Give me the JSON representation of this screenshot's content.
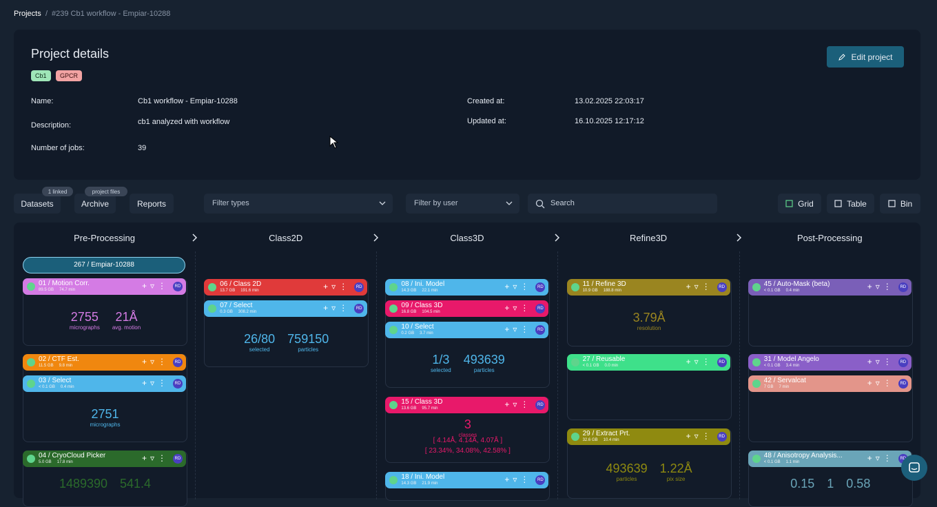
{
  "breadcrumb": [
    "Projects",
    "#239 Cb1 workflow - Empiar-10288"
  ],
  "details": {
    "title": "Project details",
    "edit_button": "Edit project",
    "tags": [
      "Cb1",
      "GPCR"
    ],
    "fields": [
      {
        "label": "Name:",
        "value": "Cb1 workflow - Empiar-10288"
      },
      {
        "label": "Description:",
        "value": "cb1 analyzed with workflow"
      },
      {
        "label": "Number of jobs:",
        "value": 39
      },
      {
        "label": "Created at:",
        "value": "13.02.2025 22:03:17"
      },
      {
        "label": "Updated at:",
        "value": "16.10.2025 12:17:12"
      }
    ]
  },
  "toolbar": {
    "badges": [
      "1 linked",
      "project files"
    ],
    "tabs": [
      "Datasets",
      "Archive",
      "Reports"
    ],
    "filters": [
      "Filter types",
      "Filter by user"
    ],
    "search": "Search",
    "views": [
      "Grid",
      "Table",
      "Bin"
    ]
  },
  "workflow": {
    "dataset": "267 / Empiar-10288",
    "columns": [
      {
        "title": "Pre-Processing",
        "groups": [
          {
            "jobs": [
              {
                "title": "01 / Motion Corr.",
                "size": "89.5 GB",
                "time": "74.7 min",
                "user": "RD",
                "color": "#d47be4"
              }
            ],
            "stats": [
              {
                "value": "2755",
                "label": "micrographs"
              },
              {
                "value": "21Å",
                "label": "avg. motion"
              }
            ]
          },
          {
            "jobs": [
              {
                "title": "02 / CTF Est.",
                "size": "11.5 GB",
                "time": "9.8 min",
                "user": "RD",
                "color": "#f0870f"
              },
              {
                "title": "03 / Select",
                "size": "< 0.1 GB",
                "time": "0.4 min",
                "user": "RD",
                "color": "#4fb6ea"
              }
            ],
            "stats": [
              {
                "value": "2751",
                "label": "micrographs"
              }
            ]
          },
          {
            "jobs": [
              {
                "title": "04 / CryoCloud Picker",
                "size": "5.0 GB",
                "time": "17.8 min",
                "user": "RD",
                "color": "#2b6a2b"
              }
            ],
            "stats": [
              {
                "value": "1489390"
              },
              {
                "value": "541.4"
              }
            ]
          }
        ]
      },
      {
        "title": "Class2D",
        "groups": [
          {
            "jobs": [
              {
                "title": "06 / Class 2D",
                "size": "13.7 GB",
                "time": "191.6 min",
                "user": "RD",
                "color": "#e03a3a"
              },
              {
                "title": "07 / Select",
                "size": "0.3 GB",
                "time": "308.2 min",
                "user": "RD",
                "color": "#4fb6ea"
              }
            ],
            "stats": [
              {
                "value": "26/80",
                "label": "selected"
              },
              {
                "value": "759150",
                "label": "particles"
              }
            ]
          }
        ]
      },
      {
        "title": "Class3D",
        "groups": [
          {
            "jobs": [
              {
                "title": "08 / Ini. Model",
                "size": "14.3 GB",
                "time": "22.1 min",
                "user": "RD",
                "color": "#4fb6ea"
              },
              {
                "title": "09 / Class 3D",
                "size": "16.8 GB",
                "time": "104.5 min",
                "user": "RD",
                "color": "#e8196a"
              },
              {
                "title": "10 / Select",
                "size": "0.2 GB",
                "time": "3.7 min",
                "user": "RD",
                "color": "#4fb6ea"
              }
            ],
            "stats": [
              {
                "value": "1/3",
                "label": "selected"
              },
              {
                "value": "493639",
                "label": "particles"
              }
            ]
          },
          {
            "jobs": [
              {
                "title": "15 / Class 3D",
                "size": "13.6 GB",
                "time": "95.7 min",
                "user": "RD",
                "color": "#e8196a"
              }
            ],
            "stats": [
              {
                "value": "3",
                "label": "classes"
              }
            ],
            "lines": [
              "[ 4.14Å, 4.14Å, 4.07Å ]",
              "[ 23.34%, 34.08%, 42.58% ]"
            ]
          },
          {
            "jobs": [
              {
                "title": "18 / Ini. Model",
                "size": "14.3 GB",
                "time": "21.9 min",
                "user": "RD",
                "color": "#4fb6ea"
              }
            ]
          }
        ]
      },
      {
        "title": "Refine3D",
        "groups": [
          {
            "jobs": [
              {
                "title": "11 / Refine 3D",
                "size": "10.9 GB",
                "time": "188.8 min",
                "user": "RD",
                "color": "#9a8520"
              }
            ],
            "stats": [
              {
                "value": "3.79Å",
                "label": "resolution"
              }
            ]
          },
          {
            "jobs": [
              {
                "title": "27 / Reusable",
                "size": "< 0.1 GB",
                "time": "0.0 min",
                "user": "RD",
                "color": "#3ee08a"
              }
            ]
          },
          {
            "jobs": [
              {
                "title": "29 / Extract Prt.",
                "size": "32.6 GB",
                "time": "10.4 min",
                "user": "RD",
                "color": "#8f8a10"
              }
            ],
            "stats": [
              {
                "value": "493639",
                "label": "particles"
              },
              {
                "value": "1.22Å",
                "label": "pix size"
              }
            ]
          }
        ]
      },
      {
        "title": "Post-Processing",
        "groups": [
          {
            "jobs": [
              {
                "title": "45 / Auto-Mask (beta)",
                "size": "< 0.1 GB",
                "time": "0.4 min",
                "user": "RD",
                "color": "#7a5fb8"
              }
            ]
          },
          {
            "jobs": [
              {
                "title": "31 / Model Angelo",
                "size": "< 0.1 GB",
                "time": "3.4 min",
                "user": "RD",
                "color": "#8a5fc8"
              },
              {
                "title": "42 / Servalcat",
                "size": "7 GB",
                "time": "7 min",
                "user": "RD",
                "color": "#e3958a"
              }
            ]
          },
          {
            "jobs": [
              {
                "title": "48 / Anisotropy Analysis...",
                "size": "< 0.1 GB",
                "time": "1.1 min",
                "user": "RD",
                "color": "#6aa5b8"
              }
            ],
            "stats": [
              {
                "value": "0.15"
              },
              {
                "value": "1"
              },
              {
                "value": "0.58"
              }
            ]
          }
        ]
      }
    ]
  }
}
